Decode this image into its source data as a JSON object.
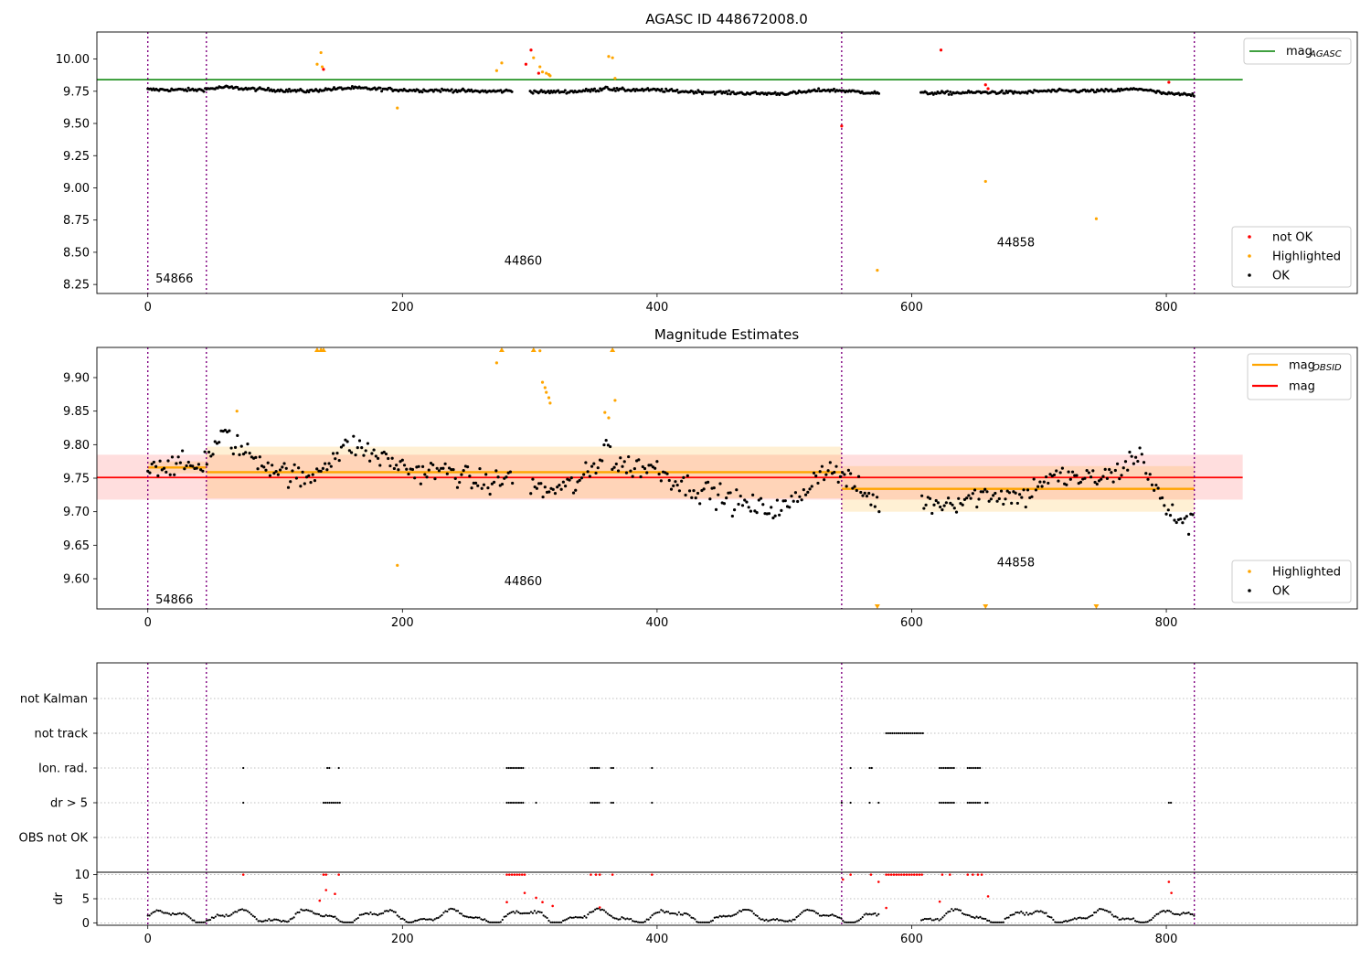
{
  "colors": {
    "ok": "#000000",
    "not_ok": "#ff0000",
    "highlighted": "#ffa500",
    "agasc": "#008000",
    "obsid": "#ffa500",
    "mag": "#ff0000",
    "obs_line": "#800080"
  },
  "chart_data": [
    {
      "type": "scatter",
      "title": "AGASC ID 448672008.0",
      "xlim": [
        -40,
        950
      ],
      "ylim": [
        8.18,
        10.21
      ],
      "xticks": [
        0,
        200,
        400,
        600,
        800
      ],
      "yticks": [
        8.25,
        8.5,
        8.75,
        9.0,
        9.25,
        9.5,
        9.75,
        10.0
      ],
      "ytick_labels": [
        "8.25",
        "8.50",
        "8.75",
        "9.00",
        "9.25",
        "9.50",
        "9.75",
        "10.00"
      ],
      "obs_lines": [
        0,
        46,
        545,
        822
      ],
      "obs_labels": [
        {
          "text": "54866",
          "x": 6,
          "y": 8.3
        },
        {
          "text": "44860",
          "x": 280,
          "y": 8.44
        },
        {
          "text": "44858",
          "x": 667,
          "y": 8.58
        }
      ],
      "agasc_mag": {
        "name": "mag$_{AGASC}$",
        "value": 9.84,
        "x_range": [
          -40,
          860
        ]
      },
      "legend_lines": [
        {
          "main": "mag",
          "sub": "AGASC",
          "color": "agasc"
        }
      ],
      "legend_points": [
        "not OK",
        "Highlighted",
        "OK"
      ],
      "highlighted_points": [
        [
          133,
          9.96
        ],
        [
          136,
          10.05
        ],
        [
          137,
          9.94
        ],
        [
          196,
          9.62
        ],
        [
          274,
          9.91
        ],
        [
          278,
          9.97
        ],
        [
          303,
          10.01
        ],
        [
          308,
          9.94
        ],
        [
          310,
          9.9
        ],
        [
          313,
          9.89
        ],
        [
          315,
          9.88
        ],
        [
          316,
          9.87
        ],
        [
          362,
          10.02
        ],
        [
          365,
          10.01
        ],
        [
          367,
          9.85
        ],
        [
          573,
          8.36
        ],
        [
          658,
          9.05
        ],
        [
          745,
          8.76
        ]
      ],
      "not_ok_points": [
        [
          138,
          9.92
        ],
        [
          297,
          9.96
        ],
        [
          301,
          10.07
        ],
        [
          307,
          9.89
        ],
        [
          545,
          9.48
        ],
        [
          623,
          10.07
        ],
        [
          658,
          9.8
        ],
        [
          660,
          9.77
        ],
        [
          802,
          9.82
        ]
      ]
    },
    {
      "type": "scatter",
      "title": "Magnitude Estimates",
      "xlim": [
        -40,
        950
      ],
      "ylim": [
        9.555,
        9.945
      ],
      "xticks": [
        0,
        200,
        400,
        600,
        800
      ],
      "yticks": [
        9.6,
        9.65,
        9.7,
        9.75,
        9.8,
        9.85,
        9.9
      ],
      "ytick_labels": [
        "9.60",
        "9.65",
        "9.70",
        "9.75",
        "9.80",
        "9.85",
        "9.90"
      ],
      "obs_lines": [
        0,
        46,
        545,
        822
      ],
      "obs_labels": [
        {
          "text": "54866",
          "x": 6,
          "y": 9.57
        },
        {
          "text": "44860",
          "x": 280,
          "y": 9.597
        },
        {
          "text": "44858",
          "x": 667,
          "y": 9.625
        }
      ],
      "mag": {
        "name": "mag",
        "value": 9.751,
        "band": [
          9.718,
          9.785
        ],
        "x_range": [
          -40,
          860
        ]
      },
      "obsid_segments": [
        {
          "x": [
            0,
            46
          ],
          "value": 9.766,
          "band": [
            9.757,
            9.775
          ]
        },
        {
          "x": [
            46,
            545
          ],
          "value": 9.759,
          "band": [
            9.72,
            9.797
          ]
        },
        {
          "x": [
            545,
            822
          ],
          "value": 9.734,
          "band": [
            9.7,
            9.768
          ]
        }
      ],
      "legend_lines": [
        {
          "main": "mag",
          "sub": "OBSID",
          "color": "obsid"
        },
        {
          "main": "mag",
          "sub": "",
          "color": "mag"
        }
      ],
      "legend_points": [
        "Highlighted",
        "OK"
      ],
      "highlighted_points": [
        [
          70,
          9.85
        ],
        [
          196,
          9.62
        ],
        [
          274,
          9.922
        ],
        [
          308,
          9.94
        ],
        [
          310,
          9.893
        ],
        [
          312,
          9.885
        ],
        [
          313,
          9.878
        ],
        [
          315,
          9.87
        ],
        [
          316,
          9.862
        ],
        [
          359,
          9.848
        ],
        [
          362,
          9.84
        ],
        [
          367,
          9.866
        ]
      ],
      "arrows_up": [
        133,
        136,
        138,
        278,
        303,
        365
      ],
      "arrows_down": [
        573,
        658,
        745
      ]
    },
    {
      "type": "scatter",
      "title": "",
      "xlim": [
        -40,
        950
      ],
      "categories": [
        "not Kalman",
        "not track",
        "Ion. rad.",
        "dr > 5",
        "OBS not OK"
      ],
      "obs_lines": [
        0,
        46,
        545,
        822
      ],
      "xticks": [
        0,
        200,
        400,
        600,
        800
      ],
      "flags": {
        "not track": [
          [
            580,
            610
          ]
        ],
        "Ion. rad.": [
          [
            75,
            75
          ],
          [
            141,
            143
          ],
          [
            150,
            150
          ],
          [
            282,
            296
          ],
          [
            348,
            355
          ],
          [
            364,
            367
          ],
          [
            396,
            396
          ],
          [
            552,
            552
          ],
          [
            567,
            569
          ],
          [
            622,
            634
          ],
          [
            644,
            655
          ]
        ],
        "dr > 5": [
          [
            75,
            75
          ],
          [
            138,
            151
          ],
          [
            282,
            296
          ],
          [
            305,
            305
          ],
          [
            348,
            355
          ],
          [
            364,
            367
          ],
          [
            396,
            396
          ],
          [
            545,
            545
          ],
          [
            552,
            552
          ],
          [
            567,
            567
          ],
          [
            574,
            574
          ],
          [
            622,
            634
          ],
          [
            644,
            655
          ],
          [
            658,
            660
          ],
          [
            802,
            805
          ]
        ]
      },
      "dr_panel": {
        "ylabel": "dr",
        "ylim": [
          -0.5,
          10.5
        ],
        "yticks": [
          0,
          5,
          10
        ],
        "red_points": [
          [
            75,
            10
          ],
          [
            138,
            10
          ],
          [
            140,
            10
          ],
          [
            150,
            10
          ],
          [
            282,
            10
          ],
          [
            284,
            10
          ],
          [
            286,
            10
          ],
          [
            288,
            10
          ],
          [
            290,
            10
          ],
          [
            292,
            10
          ],
          [
            294,
            10
          ],
          [
            296,
            10
          ],
          [
            348,
            10
          ],
          [
            352,
            10
          ],
          [
            355,
            10
          ],
          [
            365,
            10
          ],
          [
            396,
            10
          ],
          [
            552,
            10
          ],
          [
            568,
            10
          ],
          [
            580,
            10
          ],
          [
            582,
            10
          ],
          [
            584,
            10
          ],
          [
            586,
            10
          ],
          [
            588,
            10
          ],
          [
            590,
            10
          ],
          [
            592,
            10
          ],
          [
            594,
            10
          ],
          [
            596,
            10
          ],
          [
            598,
            10
          ],
          [
            600,
            10
          ],
          [
            602,
            10
          ],
          [
            604,
            10
          ],
          [
            606,
            10
          ],
          [
            608,
            10
          ],
          [
            624,
            10
          ],
          [
            630,
            10
          ],
          [
            644,
            10
          ],
          [
            648,
            10
          ],
          [
            652,
            10
          ],
          [
            655,
            10
          ],
          [
            546,
            9
          ],
          [
            574,
            8.5
          ],
          [
            802,
            8.5
          ],
          [
            140,
            6.8
          ],
          [
            147,
            6
          ],
          [
            135,
            4.6
          ],
          [
            282,
            4.3
          ],
          [
            296,
            6.2
          ],
          [
            305,
            5.2
          ],
          [
            310,
            4.3
          ],
          [
            318,
            3.5
          ],
          [
            355,
            3.2
          ],
          [
            580,
            3.1
          ],
          [
            660,
            5.5
          ],
          [
            622,
            4.4
          ],
          [
            804,
            6.2
          ]
        ]
      }
    }
  ]
}
